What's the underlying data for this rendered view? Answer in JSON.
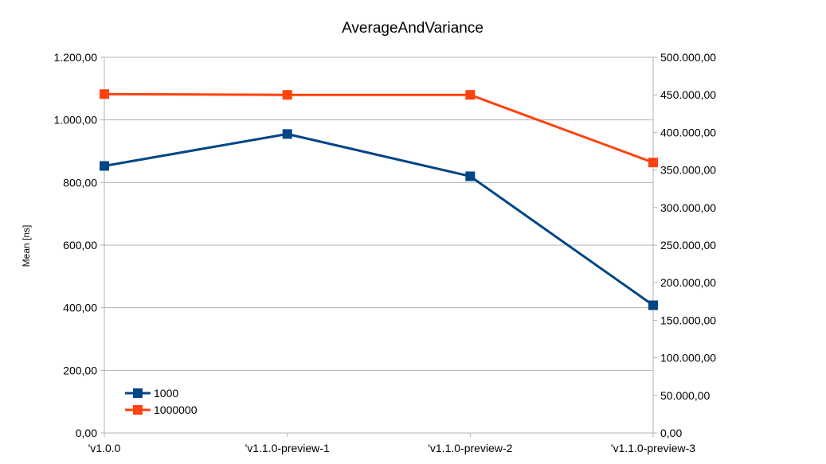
{
  "chart_data": {
    "type": "line",
    "title": "AverageAndVariance",
    "xlabel": "",
    "ylabel": "Mean [ns]",
    "categories": [
      "'v1.0.0",
      "'v1.1.0-preview-1",
      "'v1.1.0-preview-2",
      "'v1.1.0-preview-3"
    ],
    "y_left": {
      "range": [
        0,
        1200
      ],
      "ticks": [
        0,
        200,
        400,
        600,
        800,
        1000,
        1200
      ],
      "tick_labels": [
        "0,00",
        "200,00",
        "400,00",
        "600,00",
        "800,00",
        "1.000,00",
        "1.200,00"
      ]
    },
    "y_right": {
      "range": [
        0,
        500000
      ],
      "ticks": [
        0,
        50000,
        100000,
        150000,
        200000,
        250000,
        300000,
        350000,
        400000,
        450000,
        500000
      ],
      "tick_labels": [
        "0,00",
        "50.000,00",
        "100.000,00",
        "150.000,00",
        "200.000,00",
        "250.000,00",
        "300.000,00",
        "350.000,00",
        "400.000,00",
        "450.000,00",
        "500.000,00"
      ]
    },
    "grid": true,
    "legend_position": "bottom-left",
    "series": [
      {
        "name": "1000",
        "axis": "left",
        "color": "#004586",
        "values": [
          853,
          955,
          820,
          408
        ]
      },
      {
        "name": "1000000",
        "axis": "right",
        "color": "#ff420e",
        "values": [
          451000,
          450000,
          450000,
          360000
        ]
      }
    ]
  }
}
